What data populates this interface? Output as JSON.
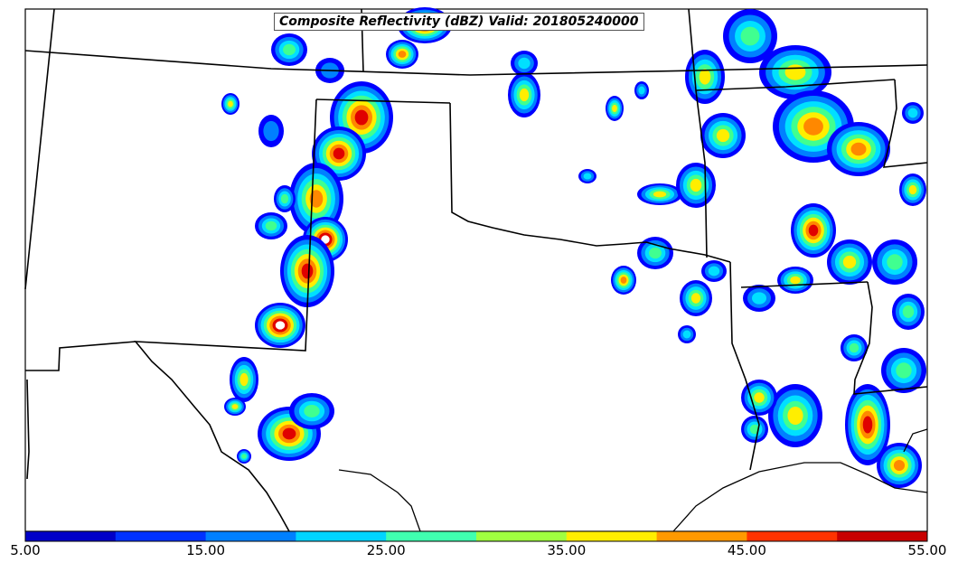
{
  "map": {
    "title": "Composite Reflectivity (dBZ) Valid: 201805240000",
    "field": "Composite Reflectivity",
    "units": "dBZ",
    "valid_time": "201805240000",
    "background_color": "#ffffff",
    "boundary_color": "#000000"
  },
  "colorbar": {
    "min": 5.0,
    "max": 55.0,
    "step": 5.0,
    "tick_labels": [
      "5.00",
      "15.00",
      "25.00",
      "35.00",
      "45.00",
      "55.00"
    ],
    "colors": [
      "#0000c8",
      "#0032ff",
      "#0080ff",
      "#00d4ff",
      "#40ffb0",
      "#a0ff40",
      "#ffee00",
      "#ff9900",
      "#ff3300",
      "#c80000"
    ]
  },
  "reflectivity_palette": {
    "weak": "#0000ff",
    "light": "#0080ff",
    "moderate": "#00e0ff",
    "medium": "#40ff90",
    "strong": "#ffee00",
    "heavy": "#ff8800",
    "intense": "#e00000",
    "extreme": "#ffffff"
  }
}
